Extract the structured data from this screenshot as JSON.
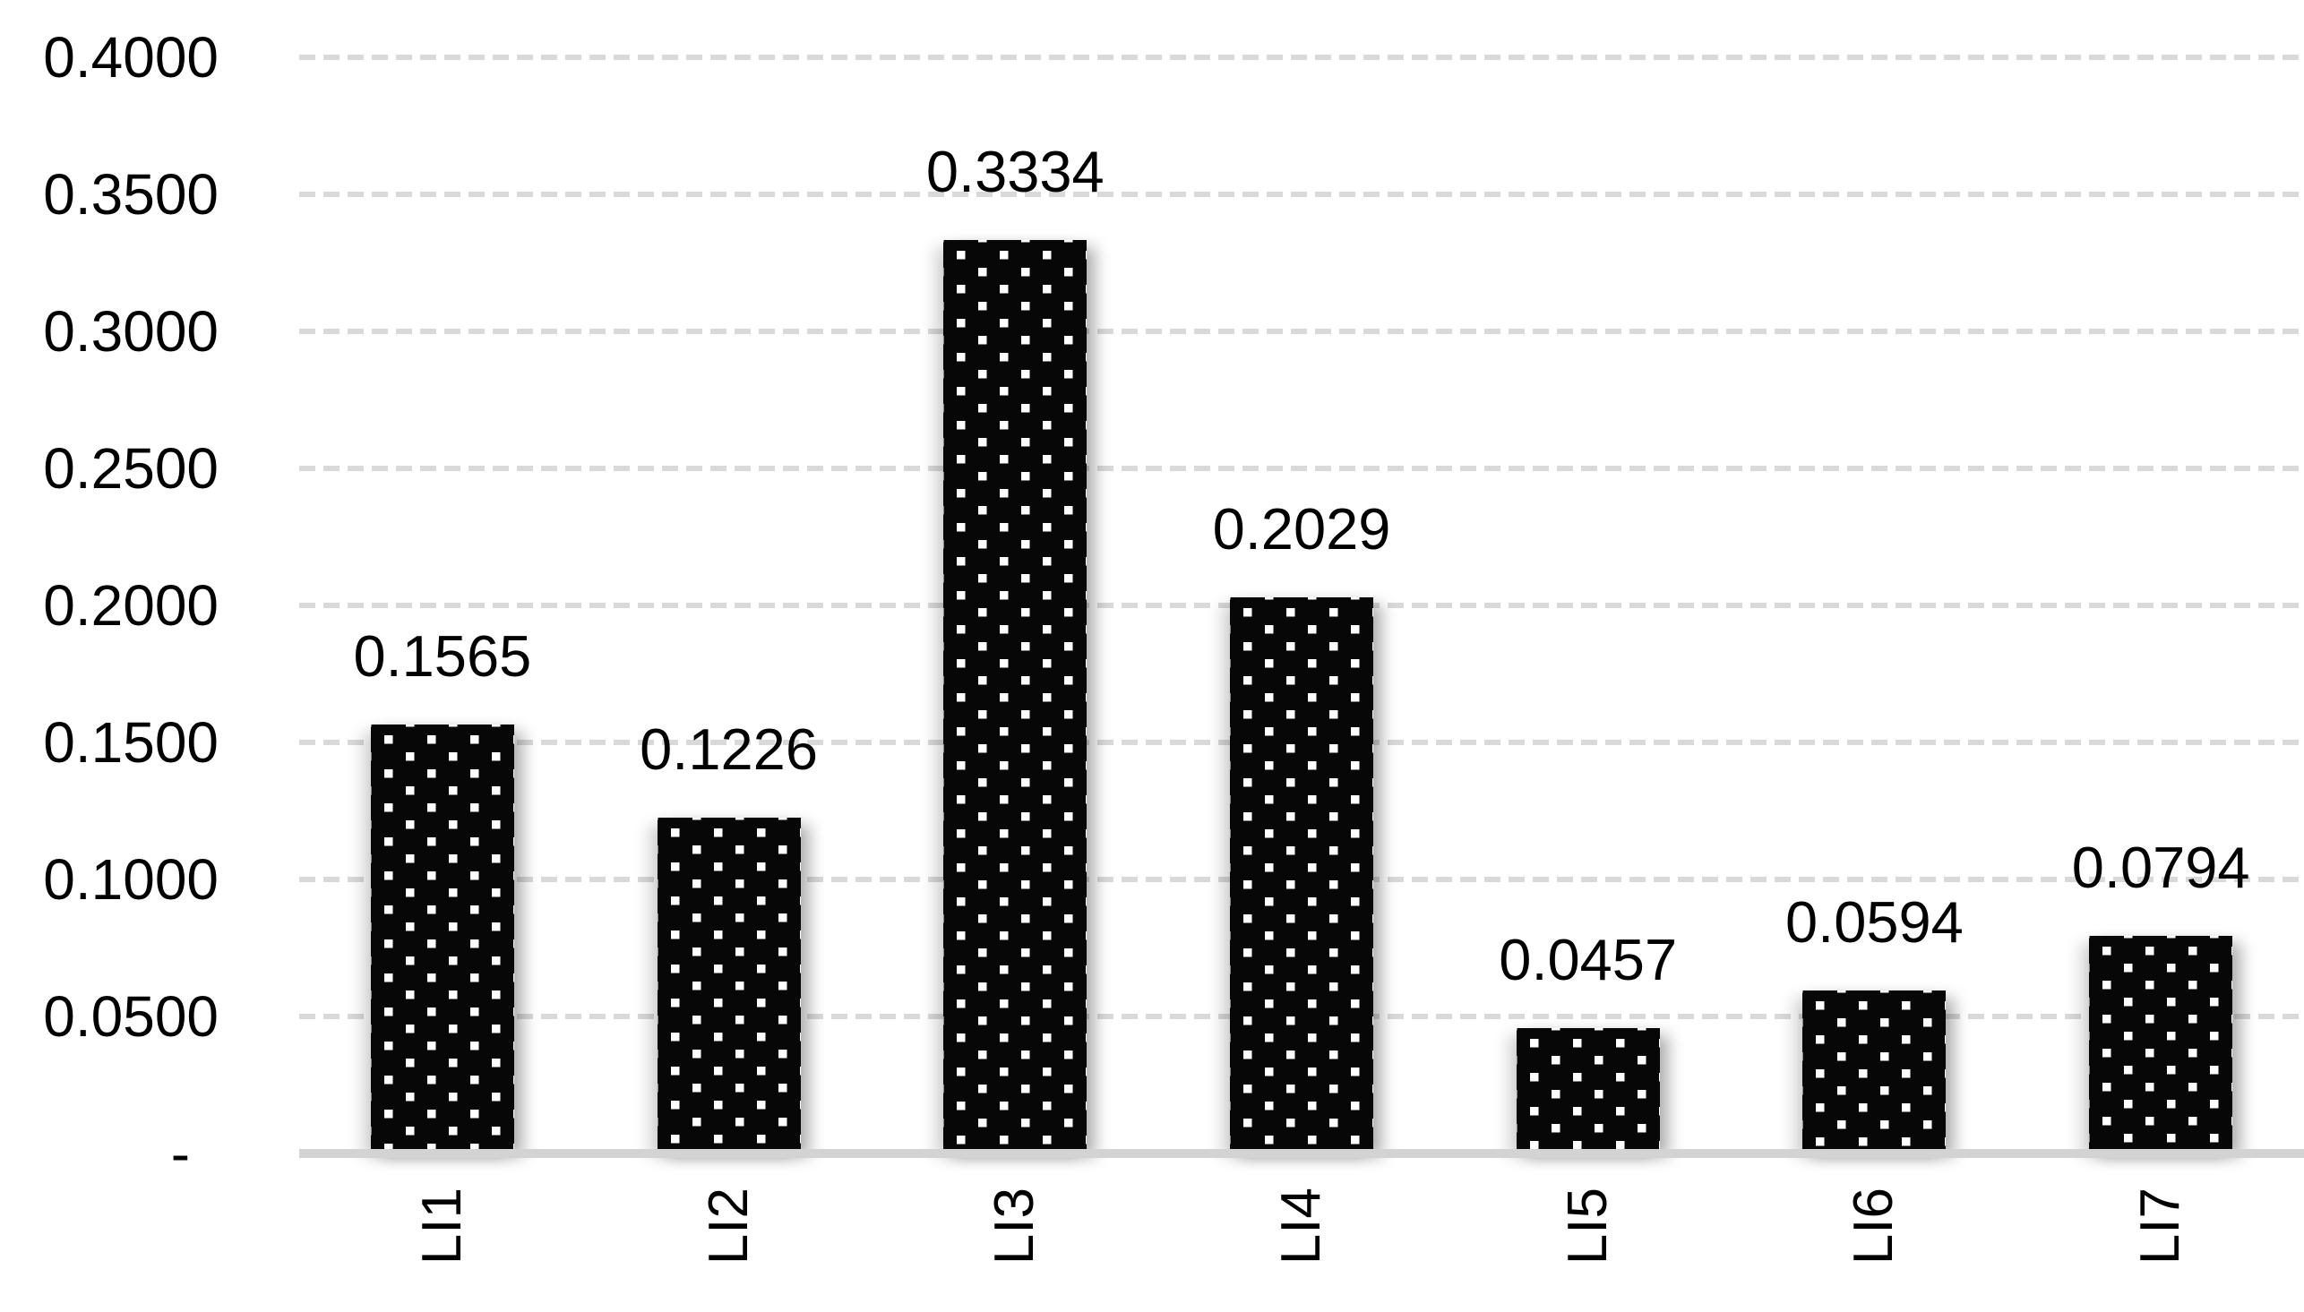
{
  "chart_data": {
    "type": "bar",
    "categories": [
      "LI1",
      "LI2",
      "LI3",
      "LI4",
      "LI5",
      "LI6",
      "LI7"
    ],
    "values": [
      0.1565,
      0.1226,
      0.3334,
      0.2029,
      0.0457,
      0.0594,
      0.0794
    ],
    "data_labels": [
      "0.1565",
      "0.1226",
      "0.3334",
      "0.2029",
      "0.0457",
      "0.0594",
      "0.0794"
    ],
    "ylim": [
      0,
      0.4
    ],
    "ytick_interval": 0.05,
    "yticks": [
      {
        "value": 0.0,
        "label": "-"
      },
      {
        "value": 0.05,
        "label": "0.0500"
      },
      {
        "value": 0.1,
        "label": "0.1000"
      },
      {
        "value": 0.15,
        "label": "0.1500"
      },
      {
        "value": 0.2,
        "label": "0.2000"
      },
      {
        "value": 0.25,
        "label": "0.2500"
      },
      {
        "value": 0.3,
        "label": "0.3000"
      },
      {
        "value": 0.35,
        "label": "0.3500"
      },
      {
        "value": 0.4,
        "label": "0.4000"
      }
    ],
    "grid": true,
    "gridline_style": "dashed",
    "legend_position": "none",
    "bar_pattern": "black fill with staggered white square dots",
    "x_tick_label_rotation_deg": 90,
    "colors": {
      "bar_fill": "#070707",
      "bar_dot": "#ffffff",
      "gridline": "#d9d9d9",
      "axis_line": "#d3d3d3",
      "text": "#000000",
      "background": "#ffffff"
    }
  }
}
